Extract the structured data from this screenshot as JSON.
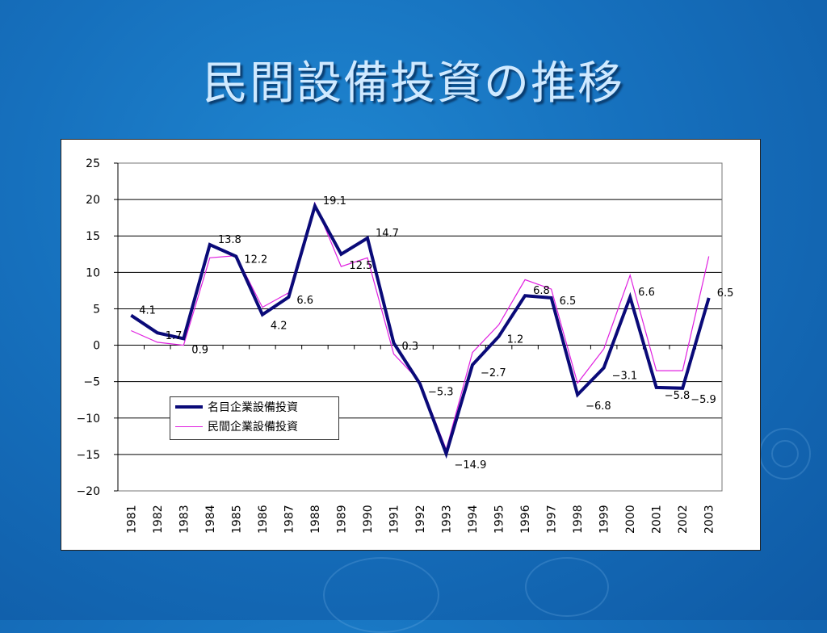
{
  "slide": {
    "title": "民間設備投資の推移"
  },
  "chart_data": {
    "type": "line",
    "title": "",
    "xlabel": "",
    "ylabel": "",
    "ylim": [
      -20,
      25
    ],
    "yticks": [
      25,
      20,
      15,
      10,
      5,
      0,
      -5,
      -10,
      -15,
      -20
    ],
    "ytick_labels": [
      "25",
      "20",
      "15",
      "10",
      "5",
      "0",
      "−5",
      "−10",
      "−15",
      "−20"
    ],
    "grid": true,
    "legend_position": "lower-left",
    "categories": [
      "1981",
      "1982",
      "1983",
      "1984",
      "1985",
      "1986",
      "1987",
      "1988",
      "1989",
      "1990",
      "1991",
      "1992",
      "1993",
      "1994",
      "1995",
      "1996",
      "1997",
      "1998",
      "1999",
      "2000",
      "2001",
      "2002",
      "2003"
    ],
    "series": [
      {
        "name": "名目企業設備投資",
        "color": "#0a0a78",
        "values": [
          4.1,
          1.7,
          0.9,
          13.8,
          12.2,
          4.2,
          6.6,
          19.1,
          12.5,
          14.7,
          0.3,
          -5.3,
          -14.9,
          -2.7,
          1.2,
          6.8,
          6.5,
          -6.8,
          -3.1,
          6.6,
          -5.8,
          -5.9,
          6.5
        ]
      },
      {
        "name": "民間企業設備投資",
        "color": "#e020e0",
        "values": [
          2.0,
          0.4,
          0.0,
          12.0,
          12.3,
          5.2,
          7.2,
          19.5,
          10.8,
          12.0,
          -1.2,
          -5.0,
          -14.3,
          -1.0,
          2.8,
          9.0,
          7.7,
          -5.2,
          -0.5,
          9.6,
          -3.5,
          -3.5,
          12.2
        ]
      }
    ],
    "data_labels": [
      "4.1",
      "1.7",
      "0.9",
      "13.8",
      "12.2",
      "4.2",
      "6.6",
      "19.1",
      "12.5",
      "14.7",
      "0.3",
      "−5.3",
      "−14.9",
      "−2.7",
      "1.2",
      "6.8",
      "6.5",
      "−6.8",
      "−3.1",
      "6.6",
      "−5.8",
      "−5.9",
      "6.5"
    ]
  }
}
